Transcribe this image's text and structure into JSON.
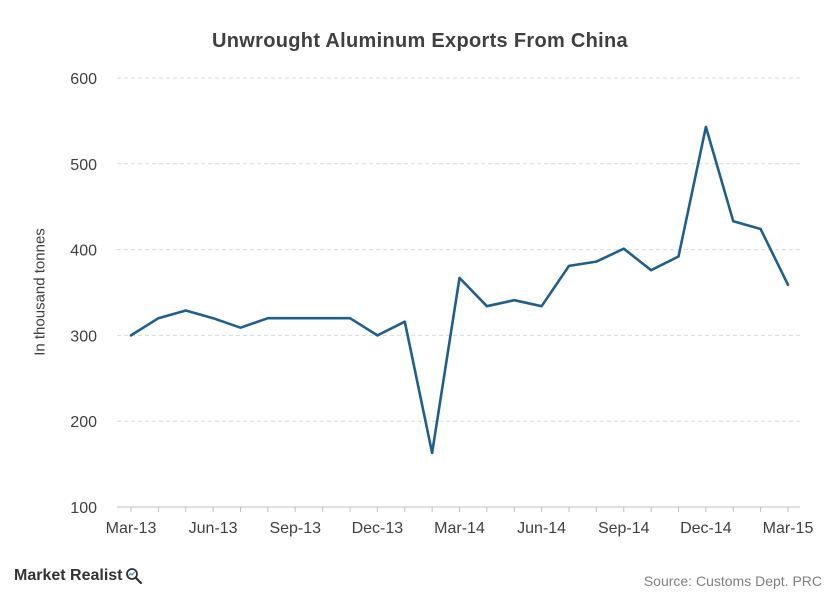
{
  "chart_data": {
    "type": "line",
    "title": "Unwrought Aluminum Exports From China",
    "ylabel": "In thousand tonnes",
    "xlabel": "",
    "ylim": [
      100,
      600
    ],
    "yticks": [
      100,
      200,
      300,
      400,
      500,
      600
    ],
    "xtick_labels": [
      "Mar-13",
      "Jun-13",
      "Sep-13",
      "Dec-13",
      "Mar-14",
      "Jun-14",
      "Sep-14",
      "Dec-14",
      "Mar-15"
    ],
    "x": [
      "Mar-13",
      "Apr-13",
      "May-13",
      "Jun-13",
      "Jul-13",
      "Aug-13",
      "Sep-13",
      "Oct-13",
      "Nov-13",
      "Dec-13",
      "Jan-14",
      "Feb-14",
      "Mar-14",
      "Apr-14",
      "May-14",
      "Jun-14",
      "Jul-14",
      "Aug-14",
      "Sep-14",
      "Oct-14",
      "Nov-14",
      "Dec-14",
      "Jan-15",
      "Feb-15",
      "Mar-15"
    ],
    "series": [
      {
        "values": [
          300,
          320,
          329,
          320,
          309,
          320,
          320,
          320,
          320,
          300,
          316,
          163,
          367,
          334,
          341,
          334,
          381,
          386,
          401,
          376,
          392,
          543,
          433,
          424,
          359
        ]
      }
    ],
    "grid": true,
    "grid_style": "dashed",
    "line_color": "#1f5f8b",
    "grid_color": "#d9d9d9"
  },
  "footer": {
    "source": "Source: Customs Dept. PRC",
    "logo_text": "Market Realist"
  },
  "icons": {
    "logo_icon": "magnifier-icon"
  }
}
